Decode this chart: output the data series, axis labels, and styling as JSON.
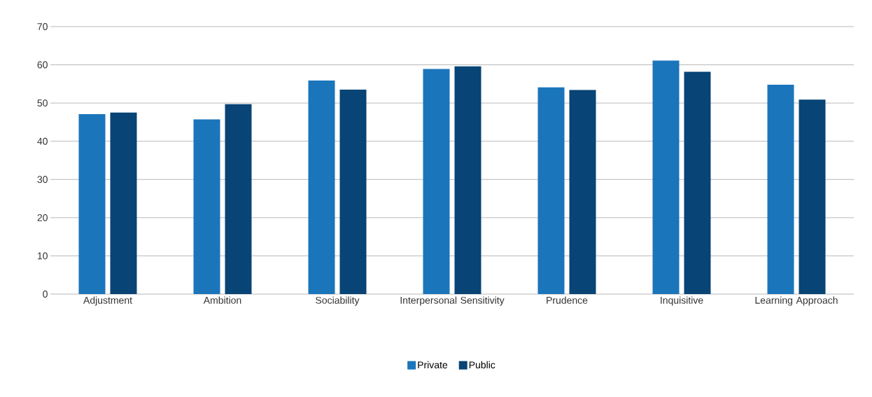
{
  "chart_data": {
    "type": "bar",
    "categories": [
      "Adjustment",
      "Ambition",
      "Sociability",
      "Interpersonal Sensitivity",
      "Prudence",
      "Inquisitive",
      "Learning Approach"
    ],
    "series": [
      {
        "name": "Private",
        "color": "#1b75bb",
        "values": [
          47.1,
          45.7,
          55.9,
          58.9,
          54.1,
          61.1,
          54.8
        ]
      },
      {
        "name": "Public",
        "color": "#084475",
        "values": [
          47.5,
          49.7,
          53.5,
          59.6,
          53.4,
          58.2,
          50.9
        ]
      }
    ],
    "ylim": [
      0,
      70
    ],
    "yticks": [
      0,
      10,
      20,
      30,
      40,
      50,
      60,
      70
    ],
    "grid": "y",
    "legend": "bottom"
  }
}
